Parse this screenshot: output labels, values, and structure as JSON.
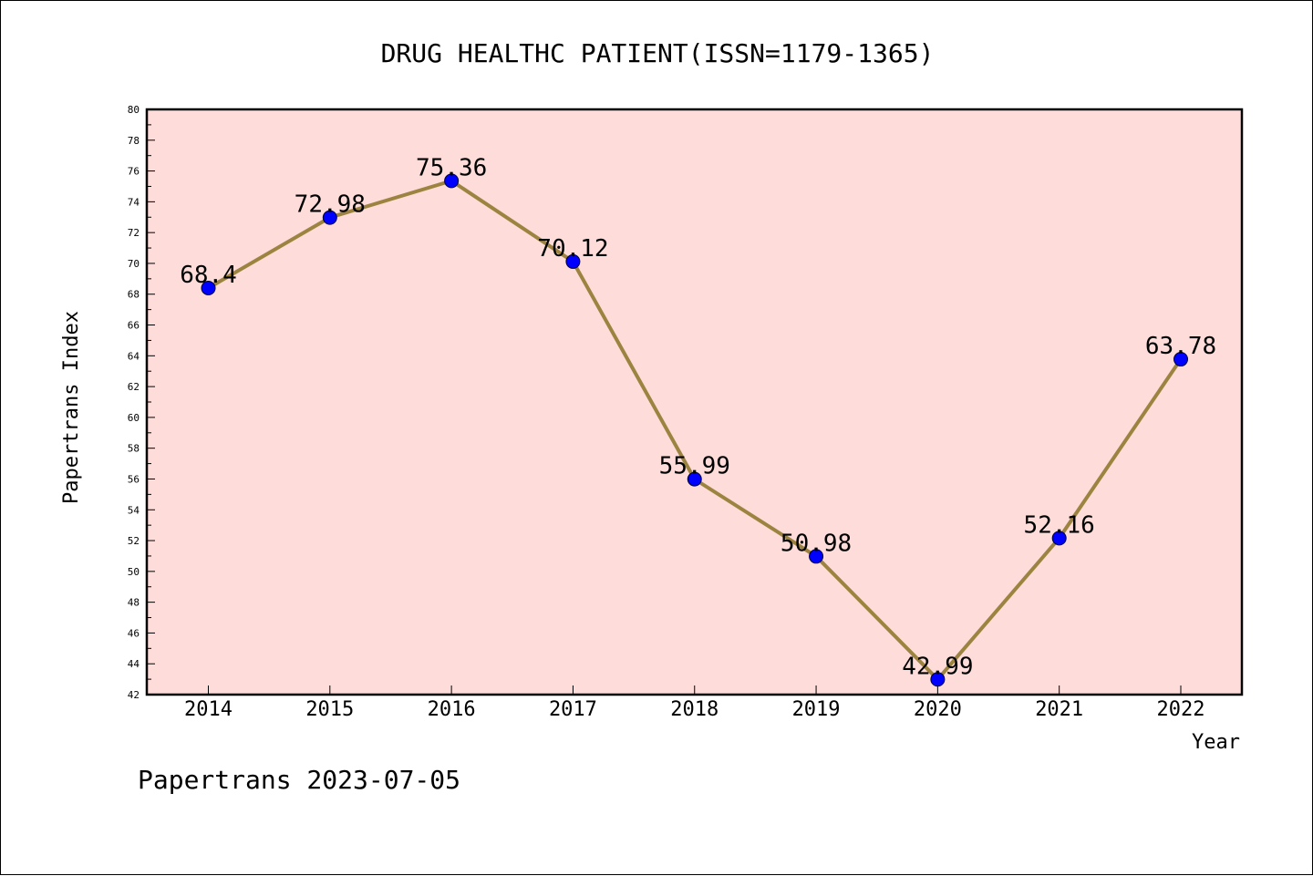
{
  "chart_data": {
    "type": "line",
    "title": "DRUG HEALTHC PATIENT(ISSN=1179-1365)",
    "xlabel": "Year",
    "ylabel": "Papertrans Index",
    "categories": [
      "2014",
      "2015",
      "2016",
      "2017",
      "2018",
      "2019",
      "2020",
      "2021",
      "2022"
    ],
    "series": [
      {
        "values": [
          68.4,
          72.98,
          75.36,
          70.12,
          55.99,
          50.98,
          42.99,
          52.16,
          63.78
        ],
        "labels": [
          "68.4",
          "72.98",
          "75.36",
          "70.12",
          "55.99",
          "50.98",
          "42.99",
          "52.16",
          "63.78"
        ]
      }
    ],
    "ylim": [
      42,
      80
    ],
    "yticks": [
      "42",
      "44",
      "46",
      "48",
      "50",
      "52",
      "54",
      "56",
      "58",
      "60",
      "62",
      "64",
      "66",
      "68",
      "70",
      "72",
      "74",
      "76",
      "78",
      "80"
    ],
    "grid": false,
    "colors": {
      "plot_background": "#fddcda",
      "line": "#9c8440",
      "marker": "#0000ff"
    }
  },
  "footer": "Papertrans 2023-07-05"
}
